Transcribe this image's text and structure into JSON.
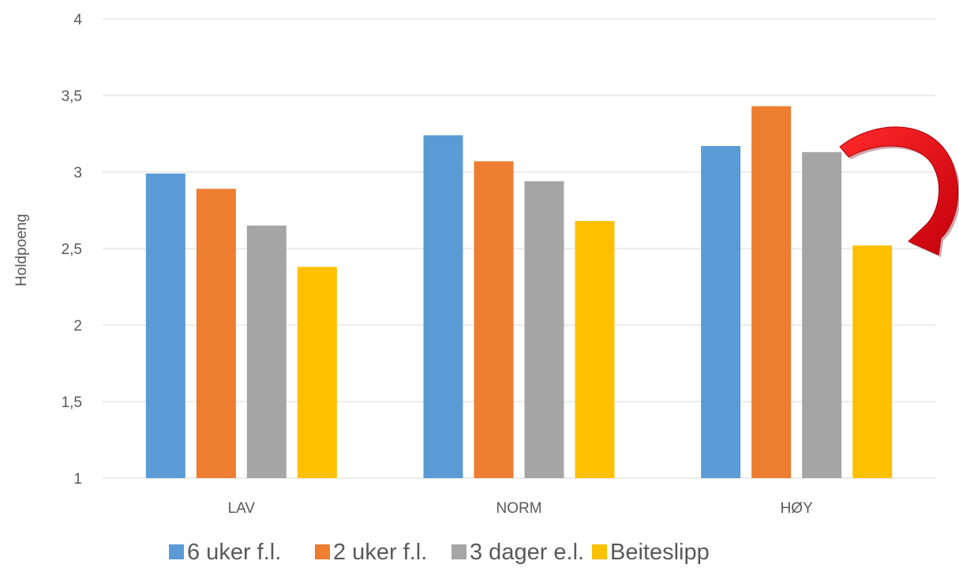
{
  "chart_data": {
    "type": "bar",
    "title": "",
    "xlabel": "",
    "ylabel": "Holdpoeng",
    "ylim": [
      1,
      4
    ],
    "yticks": [
      "1",
      "1,5",
      "2",
      "2,5",
      "3",
      "3,5",
      "4"
    ],
    "ytick_values": [
      1,
      1.5,
      2,
      2.5,
      3,
      3.5,
      4
    ],
    "grid": true,
    "legend_position": "bottom",
    "categories": [
      "LAV",
      "NORM",
      "HØY"
    ],
    "series": [
      {
        "name": "6 uker f.l.",
        "color": "#5B9BD5",
        "values": [
          2.99,
          3.24,
          3.17
        ]
      },
      {
        "name": "2 uker f.l.",
        "color": "#ED7D31",
        "values": [
          2.89,
          3.07,
          3.43
        ]
      },
      {
        "name": "3 dager e.l.",
        "color": "#A5A5A5",
        "values": [
          2.65,
          2.94,
          3.13
        ]
      },
      {
        "name": "Beiteslipp",
        "color": "#FFC000",
        "values": [
          2.38,
          2.68,
          2.52
        ]
      }
    ],
    "annotation": {
      "shape": "curved-arrow",
      "color": "#E30613",
      "points_to": "HØY / Beiteslipp"
    }
  }
}
